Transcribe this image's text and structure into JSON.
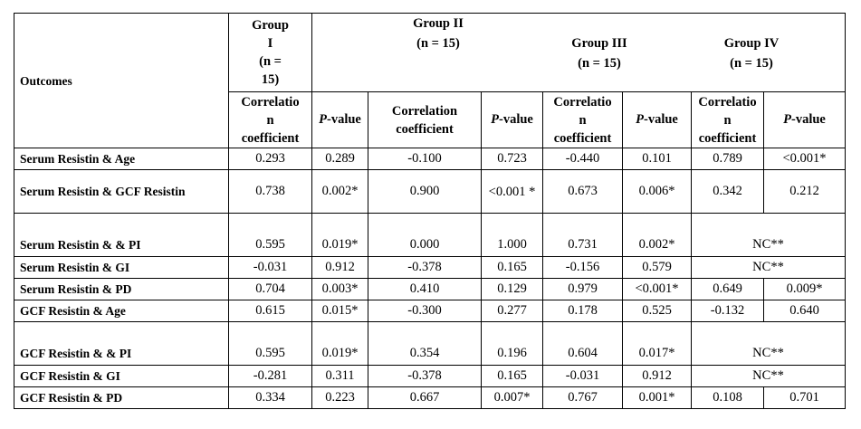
{
  "header": {
    "outcomes": "Outcomes",
    "group1": {
      "name_lines": [
        "Group",
        "I",
        "(n =",
        "15)"
      ]
    },
    "group2": {
      "name": "Group II",
      "n": "(n = 15)"
    },
    "group3": {
      "name": "Group III",
      "n": "(n = 15)"
    },
    "group4": {
      "name": "Group IV",
      "n": "(n = 15)"
    },
    "subheaders": {
      "g1_corr_lines": [
        "Correlatio",
        "n",
        "coefficient"
      ],
      "g1_p_italic": "P",
      "g1_p_rest": "-value",
      "g2_corr_lines": [
        "Correlation",
        "coefficient"
      ],
      "g2_p_italic": "P",
      "g2_p_rest": "-value",
      "g3_corr_lines": [
        "Correlatio",
        "n",
        "coefficient"
      ],
      "g3_p_italic": "P",
      "g3_p_rest": "-value",
      "g4_corr_lines": [
        "Correlatio",
        "n",
        "coefficient"
      ],
      "g4_p_italic": "P",
      "g4_p_rest": "-value"
    }
  },
  "rows": [
    {
      "label": "Serum Resistin & Age",
      "values": [
        "0.293",
        "0.289",
        "-0.100",
        "0.723",
        "-0.440",
        "0.101",
        "0.789",
        "<0.001*"
      ]
    },
    {
      "label": "Serum Resistin & GCF Resistin",
      "values": [
        "0.738",
        "0.002*",
        "0.900",
        "<0.001 *",
        "0.673",
        "0.006*",
        "0.342",
        "0.212"
      ]
    },
    {
      "label": "Serum Resistin & & PI",
      "values": [
        "0.595",
        "0.019*",
        "0.000",
        "1.000",
        "0.731",
        "0.002*"
      ],
      "nc": "NC**"
    },
    {
      "label": "Serum Resistin & GI",
      "values": [
        "-0.031",
        "0.912",
        "-0.378",
        "0.165",
        "-0.156",
        "0.579"
      ],
      "nc": "NC**"
    },
    {
      "label": "Serum Resistin & PD",
      "values": [
        "0.704",
        "0.003*",
        "0.410",
        "0.129",
        "0.979",
        "<0.001*",
        "0.649",
        "0.009*"
      ]
    },
    {
      "label": "GCF Resistin & Age",
      "values": [
        "0.615",
        "0.015*",
        "-0.300",
        "0.277",
        "0.178",
        "0.525",
        "-0.132",
        "0.640"
      ]
    },
    {
      "label": "GCF Resistin & & PI",
      "values": [
        "0.595",
        "0.019*",
        "0.354",
        "0.196",
        "0.604",
        "0.017*"
      ],
      "nc": "NC**"
    },
    {
      "label": "GCF Resistin & GI",
      "values": [
        "-0.281",
        "0.311",
        "-0.378",
        "0.165",
        "-0.031",
        "0.912"
      ],
      "nc": "NC**"
    },
    {
      "label": "GCF Resistin & PD",
      "values": [
        "0.334",
        "0.223",
        "0.667",
        "0.007*",
        "0.767",
        "0.001*",
        "0.108",
        "0.701"
      ]
    }
  ]
}
